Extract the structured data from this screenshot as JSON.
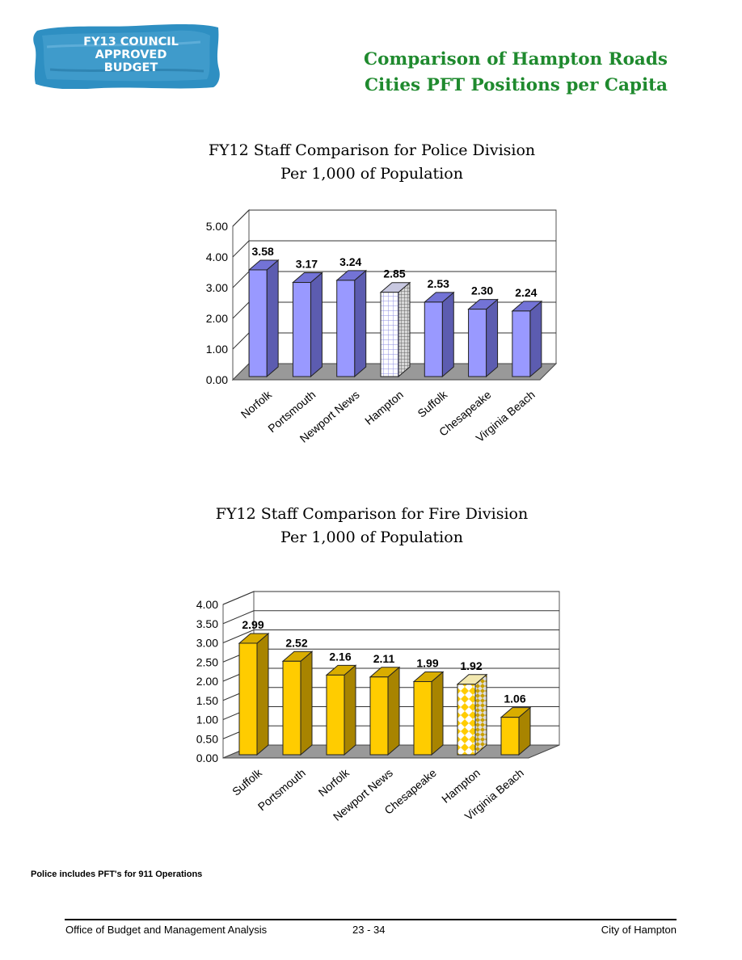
{
  "badge": {
    "lines": [
      "FY13 COUNCIL",
      "APPROVED",
      "BUDGET"
    ],
    "color": "#2e8fc2"
  },
  "header": {
    "title_line1": "Comparison of Hampton Roads",
    "title_line2": "Cities PFT Positions per Capita",
    "title_color": "#1f8a2e"
  },
  "chart_data": [
    {
      "type": "bar",
      "title": "FY12  Staff Comparison for Police Division\nPer 1,000 of Population",
      "title_line1": "FY12  Staff Comparison for Police Division",
      "title_line2": "Per 1,000 of Population",
      "categories": [
        "Norfolk",
        "Portsmouth",
        "Newport News",
        "Hampton",
        "Suffolk",
        "Chesapeake",
        "Virginia Beach"
      ],
      "values": [
        3.58,
        3.17,
        3.24,
        2.85,
        2.53,
        2.3,
        2.24
      ],
      "value_labels": [
        "3.58",
        "3.17",
        "3.24",
        "2.85",
        "2.53",
        "2.30",
        "2.24"
      ],
      "yticks": [
        "0.00",
        "1.00",
        "2.00",
        "3.00",
        "4.00",
        "5.00"
      ],
      "ylim": [
        0,
        5
      ],
      "grid": true,
      "highlight": "Hampton",
      "bar_color": "#9999ff",
      "bar_side_color": "#5c5cb0",
      "bar_top_color": "#7373d6"
    },
    {
      "type": "bar",
      "title": "FY12  Staff Comparison for Fire Division\nPer 1,000 of Population",
      "title_line1": "FY12  Staff Comparison for Fire Division",
      "title_line2": "Per 1,000 of Population",
      "categories": [
        "Suffolk",
        "Portsmouth",
        "Norfolk",
        "Newport News",
        "Chesapeake",
        "Hampton",
        "Virginia Beach"
      ],
      "values": [
        2.99,
        2.52,
        2.16,
        2.11,
        1.99,
        1.92,
        1.06
      ],
      "value_labels": [
        "2.99",
        "2.52",
        "2.16",
        "2.11",
        "1.99",
        "1.92",
        "1.06"
      ],
      "yticks": [
        "0.00",
        "0.50",
        "1.00",
        "1.50",
        "2.00",
        "2.50",
        "3.00",
        "3.50",
        "4.00"
      ],
      "ylim": [
        0,
        4
      ],
      "grid": true,
      "highlight": "Hampton",
      "bar_color": "#ffcc00",
      "bar_side_color": "#a88400",
      "bar_top_color": "#d9ad00"
    }
  ],
  "note": "Police includes PFT's for 911 Operations",
  "footer": {
    "left": "Office of Budget and Management Analysis",
    "center": "23 - 34",
    "right": "City of Hampton"
  }
}
